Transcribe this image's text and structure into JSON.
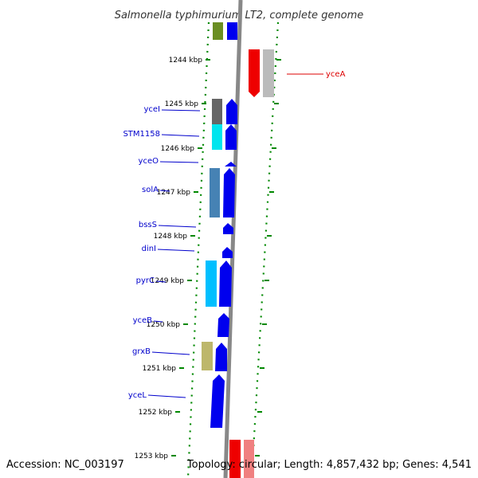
{
  "title": "Salmonella typhimurium LT2, complete genome",
  "footer": {
    "accession": "Accession: NC_003197",
    "topology": "Topology: circular; Length: 4,857,432 bp; Genes: 4,541"
  },
  "colors": {
    "forward_gene": "#0000ee",
    "reverse_gene": "#ee0000",
    "label_blue": "#0000cc",
    "label_red": "#dd0000",
    "tick_green": "#008800",
    "backbone": "#888888"
  },
  "scale_labels": [
    "1244 kbp",
    "1245 kbp",
    "1246 kbp",
    "1247 kbp",
    "1248 kbp",
    "1249 kbp",
    "1250 kbp",
    "1251 kbp",
    "1252 kbp",
    "1253 kbp"
  ],
  "genes": [
    {
      "name": "yceI",
      "strand": "+",
      "cog_color": "#666666"
    },
    {
      "name": "STM1158",
      "strand": "+",
      "cog_color": "#00e5ee"
    },
    {
      "name": "yceO",
      "strand": "+",
      "cog_color": ""
    },
    {
      "name": "solA",
      "strand": "+",
      "cog_color": "#4682b4"
    },
    {
      "name": "bssS",
      "strand": "+",
      "cog_color": ""
    },
    {
      "name": "dinI",
      "strand": "+",
      "cog_color": ""
    },
    {
      "name": "pyrC",
      "strand": "+",
      "cog_color": "#00bfff"
    },
    {
      "name": "yceB",
      "strand": "+",
      "cog_color": ""
    },
    {
      "name": "grxB",
      "strand": "+",
      "cog_color": "#bdb76b"
    },
    {
      "name": "yceL",
      "strand": "+",
      "cog_color": ""
    },
    {
      "name": "yceA",
      "strand": "-",
      "cog_color": "#bbbbbb"
    }
  ]
}
